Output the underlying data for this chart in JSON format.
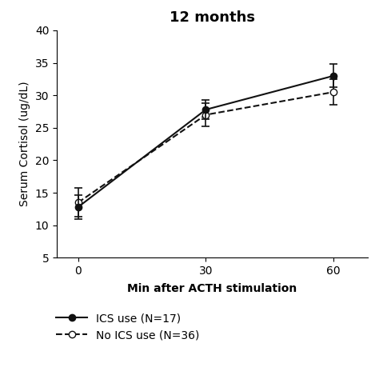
{
  "title": "12 months",
  "xlabel": "Min after ACTH stimulation",
  "ylabel": "Serum Cortisol (ug/dL)",
  "x": [
    0,
    30,
    60
  ],
  "ics_mean": [
    12.8,
    27.8,
    33.0
  ],
  "ics_err": [
    1.8,
    1.5,
    1.8
  ],
  "no_ics_mean": [
    13.5,
    27.0,
    30.5
  ],
  "no_ics_err": [
    2.2,
    1.8,
    2.0
  ],
  "ylim": [
    5,
    40
  ],
  "yticks": [
    5,
    10,
    15,
    20,
    25,
    30,
    35,
    40
  ],
  "xticks": [
    0,
    30,
    60
  ],
  "legend_ics": "ICS use (N=17)",
  "legend_no_ics": "No ICS use (N=36)",
  "line_color": "#111111",
  "background_color": "#ffffff",
  "title_fontsize": 13,
  "label_fontsize": 10,
  "tick_fontsize": 10,
  "legend_fontsize": 10
}
